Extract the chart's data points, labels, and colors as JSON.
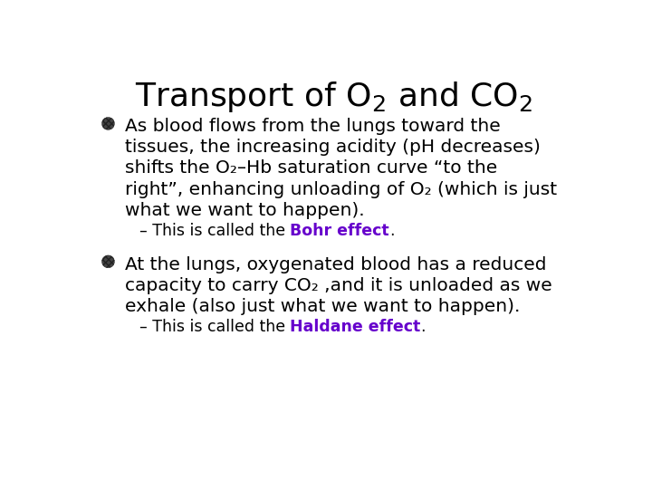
{
  "background_color": "#ffffff",
  "title_fontsize": 26,
  "body_fontsize": 14.5,
  "sub_fontsize": 12.5,
  "highlight_color": "#6600CC",
  "bullet1_lines": [
    "As blood flows from the lungs toward the",
    "tissues, the increasing acidity (pH decreases)",
    "shifts the O₂–Hb saturation curve “to the",
    "right”, enhancing unloading of O₂ (which is just",
    "what we want to happen)."
  ],
  "bullet1_sub_prefix": "– This is called the ",
  "bullet1_sub_highlight": "Bohr effect",
  "bullet1_sub_end": ".",
  "bullet2_lines": [
    "At the lungs, oxygenated blood has a reduced",
    "capacity to carry CO₂ ,and it is unloaded as we",
    "exhale (also just what we want to happen)."
  ],
  "bullet2_sub_prefix": "– This is called the ",
  "bullet2_sub_highlight": "Haldane effect",
  "bullet2_sub_end": "."
}
